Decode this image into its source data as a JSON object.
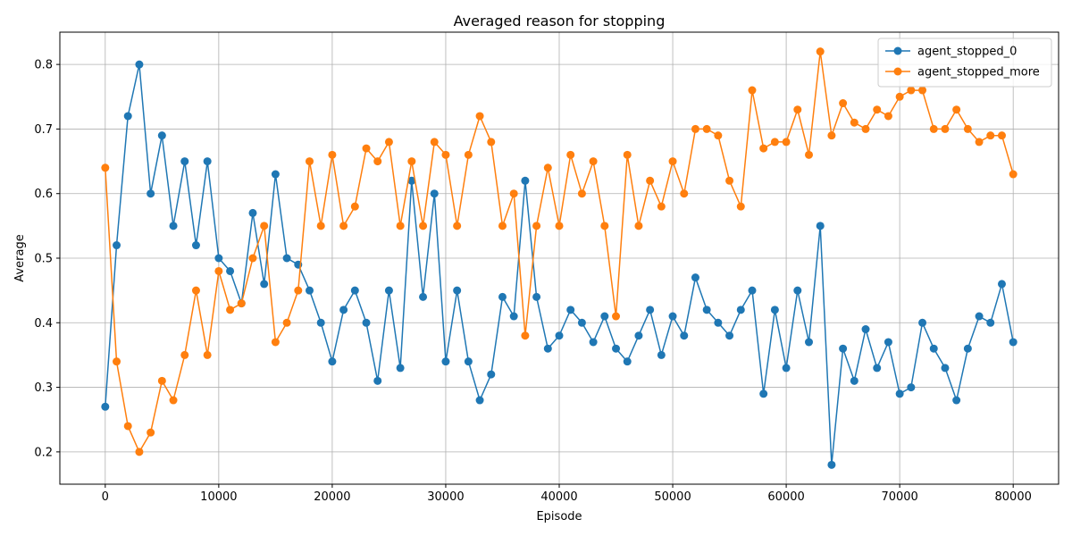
{
  "chart_data": {
    "type": "line",
    "title": "Averaged reason for stopping",
    "xlabel": "Episode",
    "ylabel": "Average",
    "xlim": [
      -4000,
      84000
    ],
    "ylim": [
      0.15,
      0.85
    ],
    "xticks": [
      0,
      10000,
      20000,
      30000,
      40000,
      50000,
      60000,
      70000,
      80000
    ],
    "yticks": [
      0.2,
      0.3,
      0.4,
      0.5,
      0.6,
      0.7,
      0.8
    ],
    "grid": true,
    "legend_position": "top-right",
    "markers": "circle",
    "series": [
      {
        "name": "agent_stopped_0",
        "color": "#1f77b4",
        "x": [
          0,
          1000,
          2000,
          3000,
          4000,
          5000,
          6000,
          7000,
          8000,
          9000,
          10000,
          11000,
          12000,
          13000,
          14000,
          15000,
          16000,
          17000,
          18000,
          19000,
          20000,
          21000,
          22000,
          23000,
          24000,
          25000,
          26000,
          27000,
          28000,
          29000,
          30000,
          31000,
          32000,
          33000,
          34000,
          35000,
          36000,
          37000,
          38000,
          39000,
          40000,
          41000,
          42000,
          43000,
          44000,
          45000,
          46000,
          47000,
          48000,
          49000,
          50000,
          51000,
          52000,
          53000,
          54000,
          55000,
          56000,
          57000,
          58000,
          59000,
          60000,
          61000,
          62000,
          63000,
          64000,
          65000,
          66000,
          67000,
          68000,
          69000,
          70000,
          71000,
          72000,
          73000,
          74000,
          75000,
          76000,
          77000,
          78000,
          79000,
          80000
        ],
        "values": [
          0.27,
          0.52,
          0.72,
          0.8,
          0.6,
          0.69,
          0.55,
          0.65,
          0.52,
          0.65,
          0.5,
          0.48,
          0.43,
          0.57,
          0.46,
          0.63,
          0.5,
          0.49,
          0.45,
          0.4,
          0.34,
          0.42,
          0.45,
          0.4,
          0.31,
          0.45,
          0.33,
          0.62,
          0.44,
          0.6,
          0.34,
          0.45,
          0.34,
          0.28,
          0.32,
          0.44,
          0.41,
          0.62,
          0.44,
          0.36,
          0.38,
          0.42,
          0.4,
          0.37,
          0.41,
          0.36,
          0.34,
          0.38,
          0.42,
          0.35,
          0.41,
          0.38,
          0.47,
          0.42,
          0.4,
          0.38,
          0.42,
          0.45,
          0.29,
          0.42,
          0.33,
          0.45,
          0.37,
          0.55,
          0.18,
          0.36,
          0.31,
          0.39,
          0.33,
          0.37,
          0.29,
          0.3,
          0.4,
          0.36,
          0.33,
          0.28,
          0.36,
          0.41,
          0.4,
          0.46,
          0.37
        ]
      },
      {
        "name": "agent_stopped_more",
        "color": "#ff7f0e",
        "x": [
          0,
          1000,
          2000,
          3000,
          4000,
          5000,
          6000,
          7000,
          8000,
          9000,
          10000,
          11000,
          12000,
          13000,
          14000,
          15000,
          16000,
          17000,
          18000,
          19000,
          20000,
          21000,
          22000,
          23000,
          24000,
          25000,
          26000,
          27000,
          28000,
          29000,
          30000,
          31000,
          32000,
          33000,
          34000,
          35000,
          36000,
          37000,
          38000,
          39000,
          40000,
          41000,
          42000,
          43000,
          44000,
          45000,
          46000,
          47000,
          48000,
          49000,
          50000,
          51000,
          52000,
          53000,
          54000,
          55000,
          56000,
          57000,
          58000,
          59000,
          60000,
          61000,
          62000,
          63000,
          64000,
          65000,
          66000,
          67000,
          68000,
          69000,
          70000,
          71000,
          72000,
          73000,
          74000,
          75000,
          76000,
          77000,
          78000,
          79000,
          80000
        ],
        "values": [
          0.64,
          0.34,
          0.24,
          0.2,
          0.23,
          0.31,
          0.28,
          0.35,
          0.45,
          0.35,
          0.48,
          0.42,
          0.43,
          0.5,
          0.55,
          0.37,
          0.4,
          0.45,
          0.65,
          0.55,
          0.66,
          0.55,
          0.58,
          0.67,
          0.65,
          0.68,
          0.55,
          0.65,
          0.55,
          0.68,
          0.66,
          0.55,
          0.66,
          0.72,
          0.68,
          0.55,
          0.6,
          0.38,
          0.55,
          0.64,
          0.55,
          0.66,
          0.6,
          0.65,
          0.55,
          0.41,
          0.66,
          0.55,
          0.62,
          0.58,
          0.65,
          0.6,
          0.7,
          0.7,
          0.69,
          0.62,
          0.58,
          0.76,
          0.67,
          0.68,
          0.68,
          0.73,
          0.66,
          0.82,
          0.69,
          0.74,
          0.71,
          0.7,
          0.73,
          0.72,
          0.75,
          0.76,
          0.76,
          0.7,
          0.7,
          0.73,
          0.7,
          0.68,
          0.69,
          0.69,
          0.63
        ]
      }
    ]
  }
}
